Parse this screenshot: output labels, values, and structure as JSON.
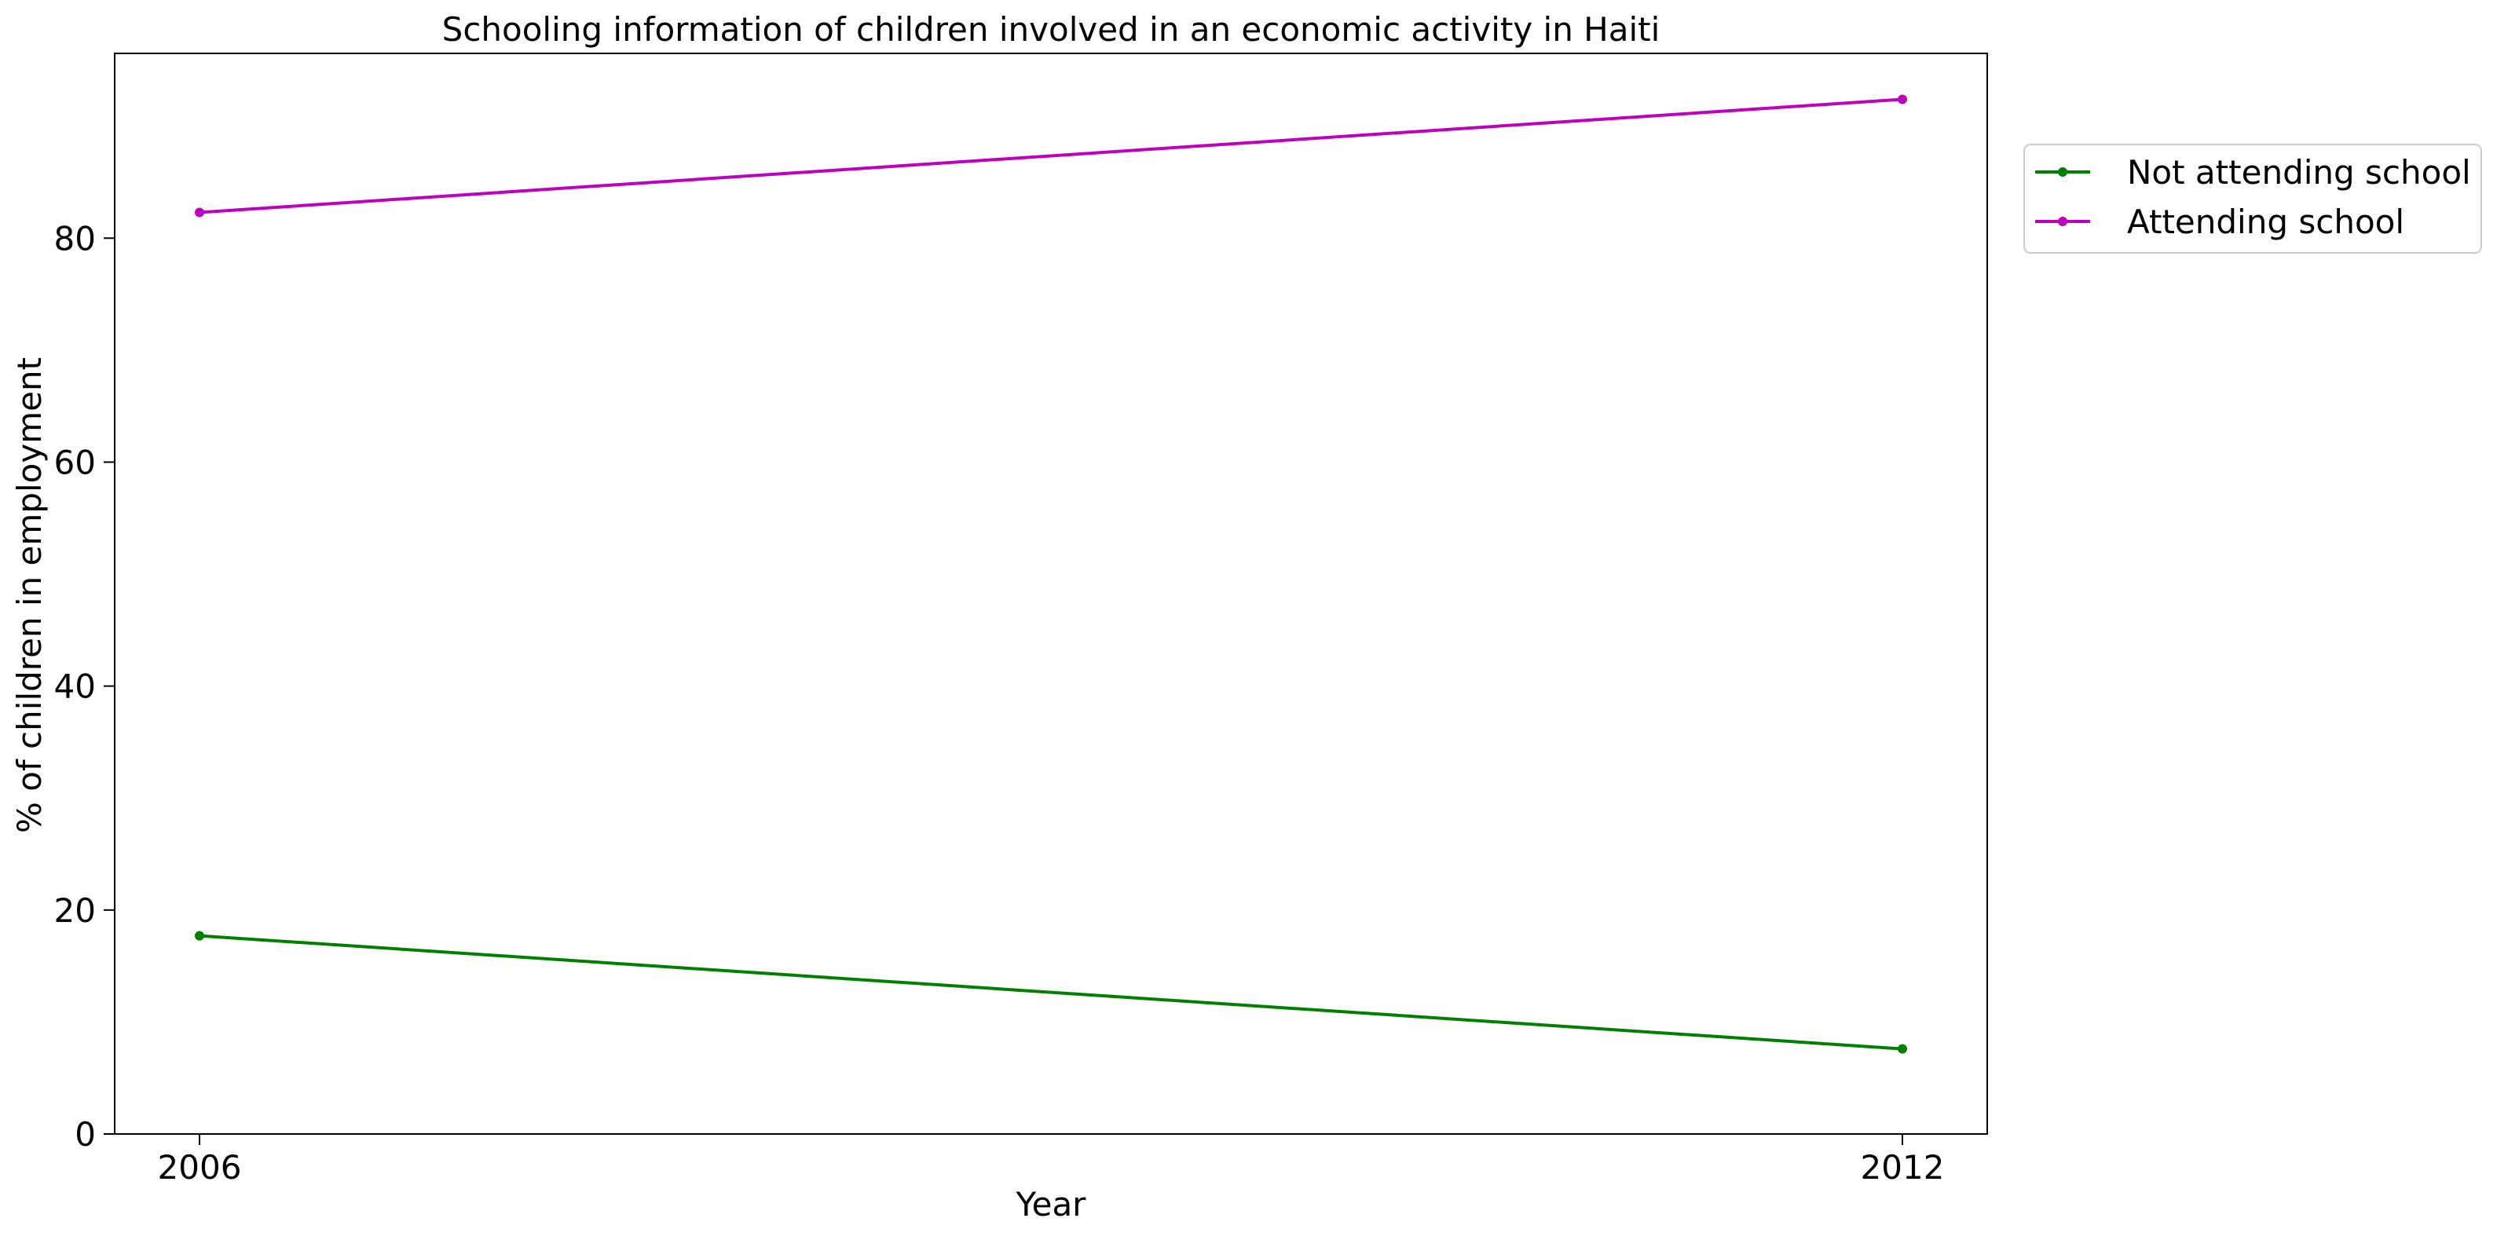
{
  "chart_data": {
    "type": "line",
    "title": "Schooling information of children involved in an economic activity in Haiti",
    "xlabel": "Year",
    "ylabel": "% of children in employment",
    "x": [
      "2006",
      "2012"
    ],
    "xlim": [
      2006,
      2012
    ],
    "ylim": [
      0,
      96.5
    ],
    "yticks": [
      0,
      20,
      40,
      60,
      80
    ],
    "grid": false,
    "legend_position": "outside-top-right",
    "series": [
      {
        "name": "Not attending school",
        "color": "#008000",
        "values": [
          17.7,
          7.6
        ]
      },
      {
        "name": "Attending school",
        "color": "#bf00bf",
        "values": [
          82.3,
          92.4
        ]
      }
    ]
  }
}
